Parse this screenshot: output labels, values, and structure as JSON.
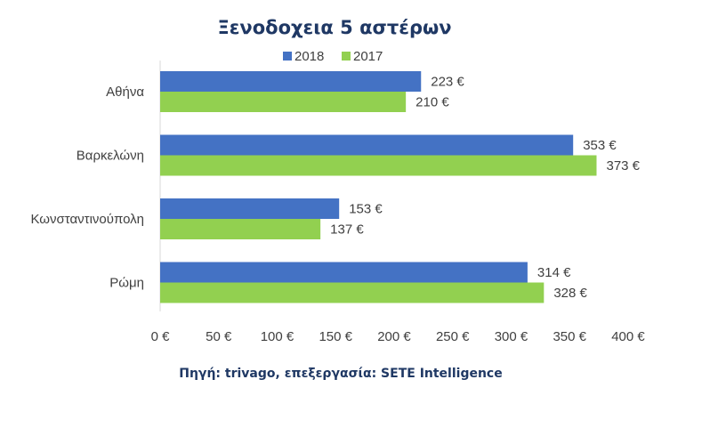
{
  "chart_data": {
    "type": "bar",
    "orientation": "horizontal",
    "title": "Ξενοδοχεια 5 αστέρων",
    "categories": [
      "Αθήνα",
      "Βαρκελώνη",
      "Κωνσταντινούπολη",
      "Ρώμη"
    ],
    "series": [
      {
        "name": "2018",
        "color": "#4472c4",
        "values": [
          223,
          353,
          153,
          314
        ],
        "labels": [
          "223 €",
          "353 €",
          "153 €",
          "314 €"
        ]
      },
      {
        "name": "2017",
        "color": "#92d050",
        "values": [
          210,
          373,
          137,
          328
        ],
        "labels": [
          "210 €",
          "373 €",
          "137 €",
          "328 €"
        ]
      }
    ],
    "xlim": [
      0,
      400
    ],
    "xticks": [
      0,
      50,
      100,
      150,
      200,
      250,
      300,
      350,
      400
    ],
    "xtick_labels": [
      "0 €",
      "50 €",
      "100 €",
      "150 €",
      "200 €",
      "250 €",
      "300 €",
      "350 €",
      "400 €"
    ],
    "grid": false,
    "legend_position": "top"
  },
  "source": "Πηγή: trivago, επεξεργασία: SETE Intelligence"
}
